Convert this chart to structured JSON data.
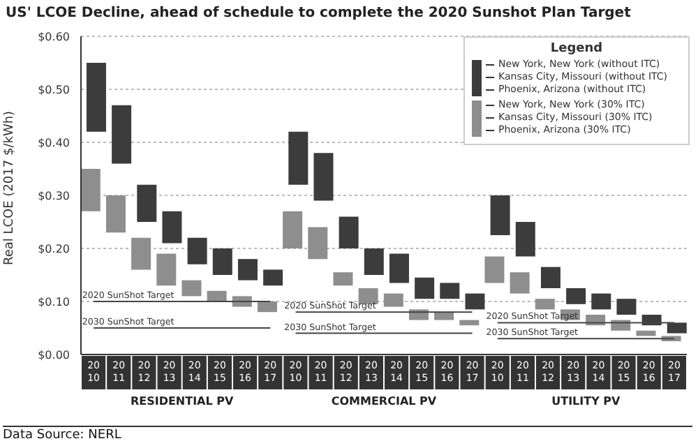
{
  "chart_data": {
    "type": "bar",
    "title": "US' LCOE Decline, ahead of schedule to complete the 2020 Sunshot Plan Target",
    "ylabel": "Real LCOE (2017 $/kWh)",
    "categories": [
      "20\n10",
      "20\n11",
      "20\n12",
      "20\n13",
      "20\n14",
      "20\n15",
      "20\n16",
      "20\n17",
      "20\n10",
      "20\n11",
      "20\n12",
      "20\n13",
      "20\n14",
      "20\n15",
      "20\n16",
      "20\n17",
      "20\n10",
      "20\n11",
      "20\n12",
      "20\n13",
      "20\n14",
      "20\n15",
      "20\n16",
      "20\n17"
    ],
    "series": [
      {
        "color": "#3c3c3c",
        "base": [
          0.42,
          0.36,
          0.25,
          0.21,
          0.17,
          0.15,
          0.14,
          0.13,
          0.32,
          0.29,
          0.2,
          0.15,
          0.135,
          0.105,
          0.105,
          0.085,
          0.225,
          0.185,
          0.125,
          0.095,
          0.085,
          0.075,
          0.055,
          0.04
        ],
        "values": [
          0.13,
          0.11,
          0.07,
          0.06,
          0.05,
          0.05,
          0.04,
          0.03,
          0.1,
          0.09,
          0.06,
          0.05,
          0.055,
          0.04,
          0.03,
          0.03,
          0.075,
          0.065,
          0.04,
          0.03,
          0.03,
          0.03,
          0.02,
          0.02
        ]
      },
      {
        "color": "#8e8e8e",
        "base": [
          0.27,
          0.23,
          0.16,
          0.13,
          0.11,
          0.1,
          0.09,
          0.08,
          0.2,
          0.18,
          0.13,
          0.095,
          0.09,
          0.065,
          0.065,
          0.055,
          0.135,
          0.115,
          0.085,
          0.065,
          0.055,
          0.045,
          0.035,
          0.025
        ],
        "values": [
          0.08,
          0.07,
          0.06,
          0.06,
          0.03,
          0.02,
          0.02,
          0.02,
          0.07,
          0.06,
          0.025,
          0.03,
          0.025,
          0.02,
          0.015,
          0.01,
          0.05,
          0.04,
          0.02,
          0.02,
          0.02,
          0.02,
          0.01,
          0.01
        ]
      },
      {
        "type": "line",
        "name": "2020 SunShot Target",
        "color": "#444444",
        "values": [
          0.1,
          0.1,
          0.1,
          0.1,
          0.1,
          0.1,
          0.1,
          0.1,
          null,
          null,
          null,
          null,
          null,
          null,
          null,
          null,
          null,
          null,
          null,
          null,
          null,
          null,
          null,
          null
        ]
      },
      {
        "type": "line",
        "name": "2030 SunShot Target",
        "color": "#444444",
        "values": [
          0.05,
          0.05,
          0.05,
          0.05,
          0.05,
          0.05,
          0.05,
          0.05,
          null,
          null,
          null,
          null,
          null,
          null,
          null,
          null,
          null,
          null,
          null,
          null,
          null,
          null,
          null,
          null
        ]
      },
      {
        "type": "line",
        "name": "2020 SunShot Target",
        "color": "#444444",
        "values": [
          null,
          null,
          null,
          null,
          null,
          null,
          null,
          null,
          0.08,
          0.08,
          0.08,
          0.08,
          0.08,
          0.08,
          0.08,
          0.08,
          null,
          null,
          null,
          null,
          null,
          null,
          null,
          null
        ]
      },
      {
        "type": "line",
        "name": "2030 SunShot Target",
        "color": "#444444",
        "values": [
          null,
          null,
          null,
          null,
          null,
          null,
          null,
          null,
          0.04,
          0.04,
          0.04,
          0.04,
          0.04,
          0.04,
          0.04,
          0.04,
          null,
          null,
          null,
          null,
          null,
          null,
          null,
          null
        ]
      },
      {
        "type": "line",
        "name": "2020 SunShot Target",
        "color": "#444444",
        "values": [
          null,
          null,
          null,
          null,
          null,
          null,
          null,
          null,
          null,
          null,
          null,
          null,
          null,
          null,
          null,
          null,
          0.06,
          0.06,
          0.06,
          0.06,
          0.06,
          0.06,
          0.06,
          0.06
        ]
      },
      {
        "type": "line",
        "name": "2030 SunShot Target",
        "color": "#444444",
        "values": [
          null,
          null,
          null,
          null,
          null,
          null,
          null,
          null,
          null,
          null,
          null,
          null,
          null,
          null,
          null,
          null,
          0.03,
          0.03,
          0.03,
          0.03,
          0.03,
          0.03,
          0.03,
          0.03
        ]
      }
    ],
    "ylim": [
      0,
      0.6
    ],
    "yticks": [
      {
        "value": 0,
        "label": "$0.00"
      },
      {
        "value": 0.1,
        "label": "$0.10"
      },
      {
        "value": 0.2,
        "label": "$0.20"
      },
      {
        "value": 0.3,
        "label": "$0.30"
      },
      {
        "value": 0.4,
        "label": "$0.40"
      },
      {
        "value": 0.5,
        "label": "$0.50"
      },
      {
        "value": 0.6,
        "label": "$0.60"
      }
    ],
    "grid": "y",
    "legend_title": "Legend",
    "annotations": [
      "New York, New York (without ITC)",
      "Kansas City, Missouri (without ITC)",
      "Phoenix, Arizona (without ITC)",
      "New York, New York (30% ITC)",
      "Kansas City, Missouri (30% ITC)",
      "Phoenix, Arizona (30% ITC)",
      "RESIDENTIAL PV",
      "COMMERCIAL PV",
      "UTILITY PV",
      "Data Source: NERL"
    ]
  }
}
